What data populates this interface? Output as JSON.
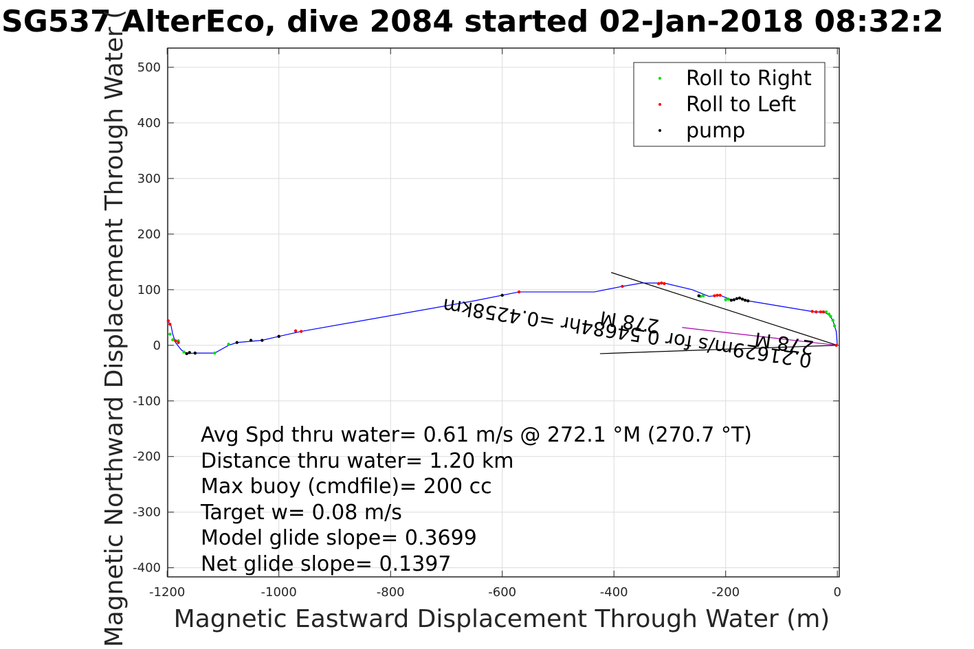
{
  "chart_data": {
    "type": "scatter",
    "title": "SG537 AlterEco, dive 2084 started 02-Jan-2018 08:32:2",
    "xlabel": "Magnetic Eastward Displacement Through Water (m)",
    "ylabel": "Magnetic Northward Displacement Through Water (",
    "xlim": [
      -1200,
      0
    ],
    "ylim": [
      -400,
      500
    ],
    "x_ticks": [
      -1200,
      -1000,
      -800,
      -600,
      -400,
      -200,
      0
    ],
    "y_ticks": [
      -400,
      -300,
      -200,
      -100,
      0,
      100,
      200,
      300,
      400,
      500
    ],
    "grid": true,
    "legend_position": "top-right",
    "legend": [
      {
        "label": "Roll to Right",
        "color": "#00dd00"
      },
      {
        "label": "Roll to Left",
        "color": "#ff0000"
      },
      {
        "label": "pump",
        "color": "#000000"
      }
    ],
    "track": {
      "color": "#0000ff",
      "x": [
        0,
        -2,
        -8,
        -15,
        -25,
        -40,
        -100,
        -160,
        -175,
        -190,
        -210,
        -230,
        -260,
        -310,
        -350,
        -385,
        -435,
        -570,
        -650,
        -960,
        -1000,
        -1030,
        -1075,
        -1090,
        -1115,
        -1150,
        -1165,
        -1175,
        -1185,
        -1190,
        -1193,
        -1198,
        -1200
      ],
      "y": [
        0,
        25,
        45,
        55,
        60,
        60,
        70,
        80,
        85,
        82,
        90,
        88,
        100,
        112,
        112,
        106,
        96,
        96,
        80,
        25,
        16,
        9,
        5,
        0,
        -14,
        -14,
        -15,
        -8,
        5,
        20,
        35,
        43,
        45
      ]
    },
    "series": [
      {
        "name": "Roll to Right",
        "color": "#00dd00",
        "x": [
          -5,
          -8,
          -12,
          -15,
          -20,
          -240,
          -245,
          -200,
          -195,
          -320,
          -1090,
          -1115,
          -1150,
          -1170,
          -1195,
          -1190,
          -1180
        ],
        "y": [
          35,
          45,
          52,
          56,
          60,
          89,
          88,
          82,
          83,
          111,
          2,
          -14,
          -14,
          -12,
          20,
          10,
          8
        ]
      },
      {
        "name": "Roll to Left",
        "color": "#ff0000",
        "x": [
          -25,
          -30,
          -38,
          -45,
          -210,
          -215,
          -220,
          -310,
          -315,
          -320,
          -385,
          -570,
          -960,
          -970,
          -1000,
          -1180,
          -1185,
          -1195,
          -1198,
          -2
        ],
        "y": [
          60,
          60,
          60,
          61,
          90,
          90,
          89,
          111,
          112,
          111,
          106,
          96,
          25,
          26,
          16,
          5,
          8,
          38,
          44,
          0
        ]
      },
      {
        "name": "pump",
        "color": "#000000",
        "x": [
          -160,
          -165,
          -170,
          -175,
          -180,
          -185,
          -190,
          -248,
          -600,
          -1000,
          -1030,
          -1050,
          -1075,
          -1150,
          -1160,
          -1165
        ],
        "y": [
          80,
          81,
          83,
          85,
          84,
          82,
          81,
          89,
          90,
          16,
          9,
          9,
          5,
          -14,
          -13,
          -15
        ]
      }
    ],
    "overlay_lines": [
      {
        "color": "#000000",
        "x": [
          0,
          -405
        ],
        "y": [
          0,
          131
        ]
      },
      {
        "color": "#000000",
        "x": [
          0,
          -425
        ],
        "y": [
          0,
          -15
        ]
      },
      {
        "color": "#aa00aa",
        "x": [
          0,
          -278
        ],
        "y": [
          0,
          32
        ]
      }
    ],
    "annotations": [
      "0.21629m/s for 0.54684hr =0.4258km",
      "278 M",
      "278 M"
    ],
    "stats": [
      "Avg Spd thru water=  0.61 m/s @ 272.1 °M (270.7 °T)",
      "Distance thru water=  1.20 km",
      "Max buoy (cmdfile)= 200 cc",
      "Target w= 0.08 m/s",
      "Model glide slope= 0.3699",
      "Net glide slope= 0.1397"
    ]
  }
}
